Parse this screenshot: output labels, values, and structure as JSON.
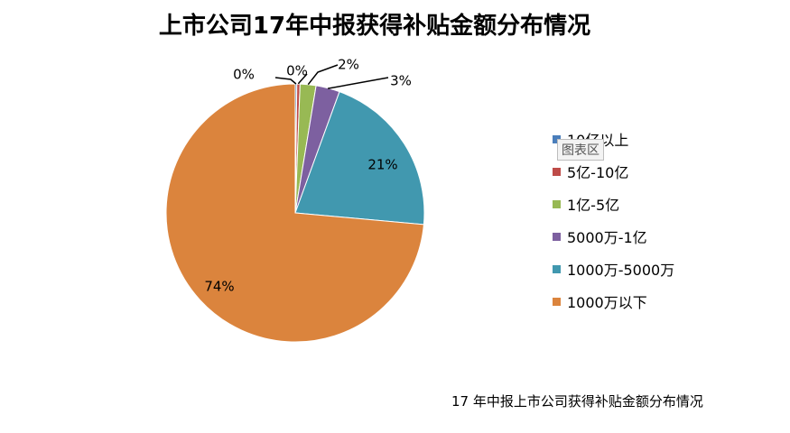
{
  "chart_data": {
    "type": "pie",
    "title": "上市公司17年中报获得补贴金额分布情况",
    "categories": [
      "10亿以上",
      "5亿-10亿",
      "1亿-5亿",
      "5000万-1亿",
      "1000万-5000万",
      "1000万以下"
    ],
    "values": [
      0.2,
      0.4,
      2,
      3,
      21,
      74
    ],
    "data_labels": [
      "0%",
      "0%",
      "2%",
      "3%",
      "21%",
      "74%"
    ],
    "colors": [
      "#4a7ebb",
      "#be4b48",
      "#98b954",
      "#7d60a0",
      "#4198af",
      "#db843d"
    ],
    "legend_position": "right"
  },
  "chart_area_tag": "图表区",
  "footer_caption": "17 年中报上市公司获得补贴金额分布情况"
}
